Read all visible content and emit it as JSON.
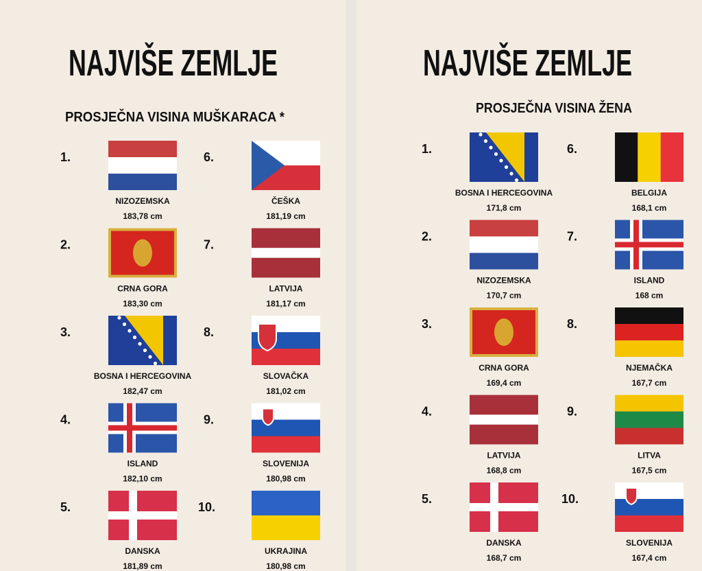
{
  "panels": [
    {
      "title": "NAJVIŠE ZEMLJE",
      "subtitle": "PROSJEČNA VISINA MUŠKARACA *",
      "entries": [
        {
          "rank": "1.",
          "country": "NIZOZEMSKA",
          "height": "183,78 cm"
        },
        {
          "rank": "2.",
          "country": "CRNA GORA",
          "height": "183,30 cm"
        },
        {
          "rank": "3.",
          "country": "BOSNA I HERCEGOVINA",
          "height": "182,47 cm"
        },
        {
          "rank": "4.",
          "country": "ISLAND",
          "height": "182,10 cm"
        },
        {
          "rank": "5.",
          "country": "DANSKA",
          "height": "181,89 cm"
        },
        {
          "rank": "6.",
          "country": "ČEŠKA",
          "height": "181,19 cm"
        },
        {
          "rank": "7.",
          "country": "LATVIJA",
          "height": "181,17 cm"
        },
        {
          "rank": "8.",
          "country": "SLOVAČKA",
          "height": "181,02 cm"
        },
        {
          "rank": "9.",
          "country": "SLOVENIJA",
          "height": "180,98 cm"
        },
        {
          "rank": "10.",
          "country": "UKRAJINA",
          "height": "180,98 cm"
        }
      ]
    },
    {
      "title": "NAJVIŠE ZEMLJE",
      "subtitle": "PROSJEČNA VISINA ŽENA",
      "entries": [
        {
          "rank": "1.",
          "country": "BOSNA I HERCEGOVINA",
          "height": "171,8 cm"
        },
        {
          "rank": "2.",
          "country": "NIZOZEMSKA",
          "height": "170,7 cm"
        },
        {
          "rank": "3.",
          "country": "CRNA GORA",
          "height": "169,4 cm"
        },
        {
          "rank": "4.",
          "country": "LATVIJA",
          "height": "168,8 cm"
        },
        {
          "rank": "5.",
          "country": "DANSKA",
          "height": "168,7 cm"
        },
        {
          "rank": "6.",
          "country": "BELGIJA",
          "height": "168,1 cm"
        },
        {
          "rank": "7.",
          "country": "ISLAND",
          "height": "168 cm"
        },
        {
          "rank": "8.",
          "country": "NJEMAČKA",
          "height": "167,7 cm"
        },
        {
          "rank": "9.",
          "country": "LITVA",
          "height": "167,5 cm"
        },
        {
          "rank": "10.",
          "country": "SLOVENIJA",
          "height": "167,4 cm"
        }
      ]
    }
  ]
}
